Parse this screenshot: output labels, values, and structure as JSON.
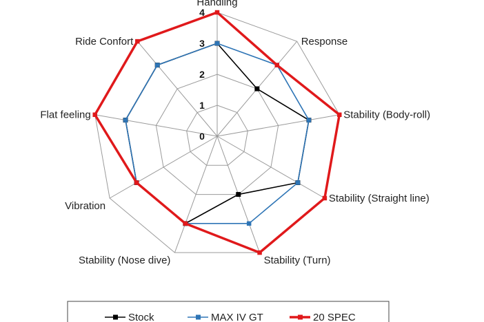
{
  "chart_data": {
    "type": "radar",
    "title": "",
    "axes": [
      "Handling",
      "Response",
      "Stability (Body-roll)",
      "Stability (Straight line)",
      "Stability (Turn)",
      "Stability (Nose dive)",
      "Vibration",
      "Flat feeling",
      "Ride Confort"
    ],
    "rlim": [
      0,
      4
    ],
    "ticks": [
      "0",
      "1",
      "2",
      "3",
      "4"
    ],
    "grid": true,
    "legend_position": "bottom",
    "series": [
      {
        "name": "Stock",
        "color": "#000000",
        "marker": "square",
        "values": [
          3,
          2,
          3,
          3,
          2,
          3,
          3,
          3,
          3
        ]
      },
      {
        "name": "MAX IV GT",
        "color": "#2e75b6",
        "marker": "diamond",
        "values": [
          3,
          3,
          3,
          3,
          3,
          3,
          3,
          3,
          3
        ]
      },
      {
        "name": "20 SPEC",
        "color": "#e0191b",
        "marker": "diamond",
        "values": [
          4,
          3,
          4,
          4,
          4,
          3,
          3,
          4,
          4
        ]
      }
    ]
  }
}
